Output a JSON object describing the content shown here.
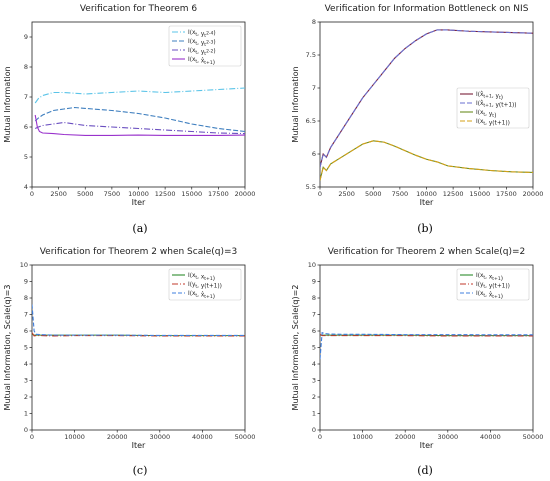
{
  "chart_data": [
    {
      "id": "a",
      "type": "line",
      "title": "Verification for Theorem 6",
      "xlabel": "Iter",
      "ylabel": "Mutual Information",
      "caption": "(a)",
      "xlim": [
        0,
        20000
      ],
      "ylim": [
        4,
        9.5
      ],
      "xticks": [
        0,
        2500,
        5000,
        7500,
        10000,
        12500,
        15000,
        17500,
        20000
      ],
      "yticks": [
        4,
        5,
        6,
        7,
        8,
        9
      ],
      "legend_position": "top-right",
      "series": [
        {
          "name": "I(x_t, y_t^{2-4})",
          "color": "#5bc4e8",
          "dash": "6,2,1,2",
          "x": [
            300,
            600,
            1000,
            2000,
            3000,
            5000,
            7500,
            10000,
            12500,
            15000,
            17500,
            20000
          ],
          "y": [
            6.8,
            6.95,
            7.05,
            7.15,
            7.15,
            7.1,
            7.15,
            7.2,
            7.15,
            7.2,
            7.25,
            7.3
          ]
        },
        {
          "name": "I(x_t, y_t^{2-3})",
          "color": "#3f7fbf",
          "dash": "5,2",
          "x": [
            300,
            600,
            1000,
            2000,
            3000,
            4000,
            5000,
            7500,
            10000,
            12500,
            15000,
            17500,
            20000
          ],
          "y": [
            6.2,
            6.3,
            6.4,
            6.55,
            6.6,
            6.65,
            6.62,
            6.55,
            6.45,
            6.3,
            6.1,
            5.95,
            5.85
          ]
        },
        {
          "name": "I(x_t, y_t^{2-2})",
          "color": "#6a4fc0",
          "dash": "6,2,1,2",
          "x": [
            300,
            600,
            1000,
            2000,
            3000,
            4000,
            5000,
            7500,
            10000,
            12500,
            15000,
            17500,
            20000
          ],
          "y": [
            5.95,
            6.0,
            6.05,
            6.1,
            6.15,
            6.1,
            6.05,
            6.0,
            5.95,
            5.9,
            5.85,
            5.8,
            5.78
          ]
        },
        {
          "name": "I(x_t, x̂_{t+1})",
          "color": "#9932cc",
          "dash": "",
          "x": [
            300,
            500,
            700,
            1000,
            2000,
            3000,
            5000,
            7500,
            10000,
            12500,
            15000,
            17500,
            20000
          ],
          "y": [
            6.4,
            6.0,
            5.85,
            5.8,
            5.78,
            5.75,
            5.72,
            5.72,
            5.73,
            5.72,
            5.72,
            5.72,
            5.73
          ]
        }
      ]
    },
    {
      "id": "b",
      "type": "line",
      "title": "Verification for Information Bottleneck on NIS",
      "xlabel": "Iter",
      "ylabel": "Mutual Information",
      "caption": "(b)",
      "xlim": [
        0,
        20000
      ],
      "ylim": [
        5.5,
        8.0
      ],
      "xticks": [
        0,
        2500,
        5000,
        7500,
        10000,
        12500,
        15000,
        17500,
        20000
      ],
      "yticks": [
        5.5,
        6.0,
        6.5,
        7.0,
        7.5,
        8.0
      ],
      "legend_position": "center-right",
      "series": [
        {
          "name": "I(x̂_{t+1}, y_t)",
          "color": "#7a1f3a",
          "dash": "",
          "x": [
            0,
            300,
            600,
            1000,
            2000,
            3000,
            4000,
            5000,
            6000,
            7000,
            8000,
            9000,
            10000,
            11000,
            12000,
            14000,
            16000,
            18000,
            20000
          ],
          "y": [
            5.8,
            6.0,
            5.95,
            6.1,
            6.35,
            6.6,
            6.85,
            7.05,
            7.25,
            7.45,
            7.6,
            7.72,
            7.82,
            7.88,
            7.88,
            7.86,
            7.85,
            7.84,
            7.83
          ]
        },
        {
          "name": "I(x̂_{t+1}, y(t+1))",
          "color": "#6a6fd0",
          "dash": "5,2",
          "x": [
            0,
            300,
            600,
            1000,
            2000,
            3000,
            4000,
            5000,
            6000,
            7000,
            8000,
            9000,
            10000,
            11000,
            12000,
            14000,
            16000,
            18000,
            20000
          ],
          "y": [
            5.8,
            6.0,
            5.95,
            6.1,
            6.35,
            6.6,
            6.85,
            7.05,
            7.25,
            7.45,
            7.6,
            7.72,
            7.82,
            7.88,
            7.88,
            7.86,
            7.85,
            7.84,
            7.83
          ]
        },
        {
          "name": "I(x_t, y_t)",
          "color": "#6b8e23",
          "dash": "",
          "x": [
            0,
            300,
            600,
            1000,
            2000,
            3000,
            4000,
            5000,
            6000,
            7000,
            8000,
            9000,
            10000,
            11000,
            12000,
            14000,
            16000,
            18000,
            20000
          ],
          "y": [
            5.6,
            5.8,
            5.75,
            5.85,
            5.95,
            6.05,
            6.15,
            6.2,
            6.18,
            6.12,
            6.05,
            5.98,
            5.92,
            5.88,
            5.82,
            5.78,
            5.75,
            5.73,
            5.72
          ]
        },
        {
          "name": "I(x_t, y(t+1))",
          "color": "#d4a017",
          "dash": "5,2",
          "x": [
            0,
            300,
            600,
            1000,
            2000,
            3000,
            4000,
            5000,
            6000,
            7000,
            8000,
            9000,
            10000,
            11000,
            12000,
            14000,
            16000,
            18000,
            20000
          ],
          "y": [
            5.6,
            5.8,
            5.75,
            5.85,
            5.95,
            6.05,
            6.15,
            6.2,
            6.18,
            6.12,
            6.05,
            5.98,
            5.92,
            5.88,
            5.82,
            5.78,
            5.75,
            5.73,
            5.72
          ]
        }
      ]
    },
    {
      "id": "c",
      "type": "line",
      "title": "Verification for Theorem 2 when Scale(q)=3",
      "xlabel": "Iter",
      "ylabel": "Mutual Information, Scale(q)=3",
      "caption": "(c)",
      "xlim": [
        0,
        50000
      ],
      "ylim": [
        0,
        10
      ],
      "xticks": [
        0,
        10000,
        20000,
        30000,
        40000,
        50000
      ],
      "yticks": [
        0,
        1,
        2,
        3,
        4,
        5,
        6,
        7,
        8,
        9,
        10
      ],
      "legend_position": "top-right",
      "series": [
        {
          "name": "I(x_t, x_{t+1})",
          "color": "#2e8b2e",
          "dash": "",
          "x": [
            0,
            500,
            1000,
            2000,
            5000,
            10000,
            20000,
            30000,
            40000,
            50000
          ],
          "y": [
            5.8,
            5.75,
            5.75,
            5.75,
            5.75,
            5.75,
            5.75,
            5.72,
            5.72,
            5.72
          ]
        },
        {
          "name": "I(y_t, y(t+1))",
          "color": "#c0392b",
          "dash": "6,2,1,2",
          "x": [
            0,
            500,
            1000,
            2000,
            5000,
            10000,
            20000,
            30000,
            40000,
            50000
          ],
          "y": [
            5.9,
            5.7,
            5.72,
            5.72,
            5.7,
            5.72,
            5.72,
            5.7,
            5.7,
            5.7
          ]
        },
        {
          "name": "I(x_t, x̂_{t+1})",
          "color": "#3f7fdf",
          "dash": "4,2",
          "x": [
            0,
            500,
            1000,
            2000,
            5000,
            10000,
            20000,
            30000,
            40000,
            50000
          ],
          "y": [
            7.6,
            6.0,
            5.8,
            5.78,
            5.75,
            5.75,
            5.75,
            5.73,
            5.73,
            5.73
          ]
        }
      ]
    },
    {
      "id": "d",
      "type": "line",
      "title": "Verification for Theorem 2 when Scale(q)=2",
      "xlabel": "Iter",
      "ylabel": "Mutual Information, Scale(q)=2",
      "caption": "(d)",
      "xlim": [
        0,
        50000
      ],
      "ylim": [
        0,
        10
      ],
      "xticks": [
        0,
        10000,
        20000,
        30000,
        40000,
        50000
      ],
      "yticks": [
        0,
        1,
        2,
        3,
        4,
        5,
        6,
        7,
        8,
        9,
        10
      ],
      "legend_position": "top-right",
      "series": [
        {
          "name": "I(x_t, x_{t+1})",
          "color": "#2e8b2e",
          "dash": "",
          "x": [
            0,
            500,
            1000,
            2000,
            5000,
            10000,
            20000,
            30000,
            40000,
            50000
          ],
          "y": [
            5.75,
            5.75,
            5.75,
            5.75,
            5.75,
            5.75,
            5.75,
            5.72,
            5.72,
            5.72
          ]
        },
        {
          "name": "I(y_t, y(t+1))",
          "color": "#c0392b",
          "dash": "6,2,1,2",
          "x": [
            0,
            500,
            1000,
            2000,
            5000,
            10000,
            20000,
            30000,
            40000,
            50000
          ],
          "y": [
            5.8,
            5.72,
            5.72,
            5.72,
            5.72,
            5.72,
            5.72,
            5.7,
            5.7,
            5.7
          ]
        },
        {
          "name": "I(x_t, x̂_{t+1})",
          "color": "#3f7fdf",
          "dash": "4,2",
          "x": [
            0,
            500,
            1000,
            2000,
            5000,
            10000,
            20000,
            30000,
            40000,
            50000
          ],
          "y": [
            4.3,
            5.9,
            5.85,
            5.82,
            5.8,
            5.8,
            5.78,
            5.78,
            5.77,
            5.77
          ]
        }
      ]
    }
  ]
}
